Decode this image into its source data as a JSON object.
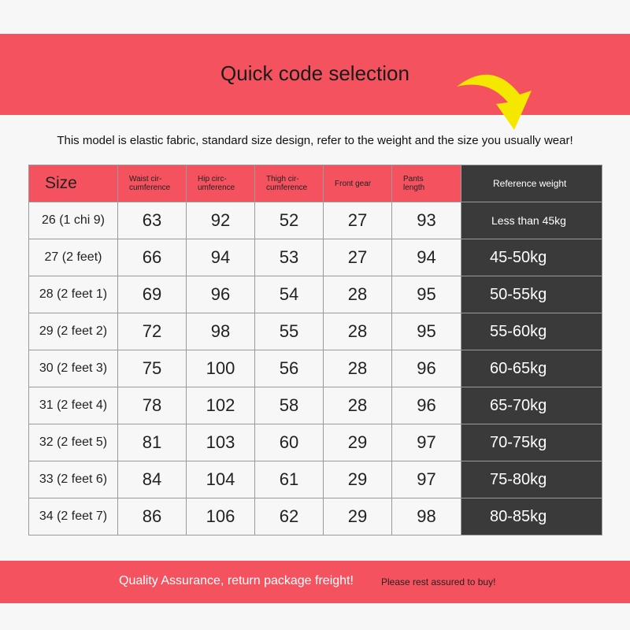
{
  "header": {
    "title": "Quick code selection",
    "subtitle": "This model is elastic fabric, standard size design, refer to the weight and the size you usually wear!"
  },
  "table": {
    "columns": [
      "Size",
      "Waist cir-\ncumference",
      "Hip circ-\numference",
      "Thigh cir-\ncumference",
      "Front gear",
      "Pants\nlength",
      "Reference weight"
    ],
    "rows": [
      [
        "26 (1 chi 9)",
        "63",
        "92",
        "52",
        "27",
        "93",
        "Less than 45kg"
      ],
      [
        "27 (2 feet)",
        "66",
        "94",
        "53",
        "27",
        "94",
        "45-50kg"
      ],
      [
        "28 (2 feet 1)",
        "69",
        "96",
        "54",
        "28",
        "95",
        "50-55kg"
      ],
      [
        "29 (2 feet 2)",
        "72",
        "98",
        "55",
        "28",
        "95",
        "55-60kg"
      ],
      [
        "30 (2 feet 3)",
        "75",
        "100",
        "56",
        "28",
        "96",
        "60-65kg"
      ],
      [
        "31 (2 feet 4)",
        "78",
        "102",
        "58",
        "28",
        "96",
        "65-70kg"
      ],
      [
        "32 (2 feet 5)",
        "81",
        "103",
        "60",
        "29",
        "97",
        "70-75kg"
      ],
      [
        "33 (2 feet 6)",
        "84",
        "104",
        "61",
        "29",
        "97",
        "75-80kg"
      ],
      [
        "34 (2 feet 7)",
        "86",
        "106",
        "62",
        "29",
        "98",
        "80-85kg"
      ]
    ]
  },
  "footer": {
    "main": "Quality Assurance, return package freight!",
    "secondary": "Please rest assured to buy!"
  },
  "colors": {
    "accent": "#f5525f",
    "dark": "#3a3a3a",
    "arrow": "#f5e800"
  }
}
